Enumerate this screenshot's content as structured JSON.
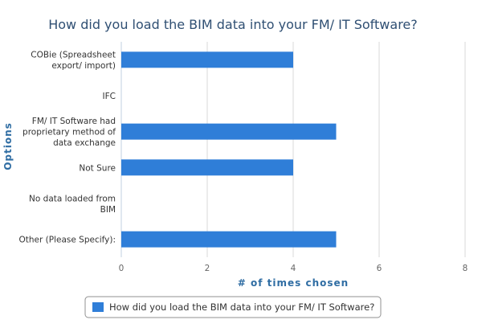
{
  "chart_data": {
    "type": "bar",
    "orientation": "horizontal",
    "title": "How did you load the BIM data into your FM/ IT Software?",
    "xlabel": "# of times chosen",
    "ylabel": "Options",
    "categories": [
      [
        "COBie (Spreadsheet",
        "export/ import)"
      ],
      [
        "IFC"
      ],
      [
        "FM/ IT Software had",
        "proprietary method of",
        "data exchange"
      ],
      [
        "Not Sure"
      ],
      [
        "No data loaded from",
        "BIM"
      ],
      [
        "Other (Please Specify):"
      ]
    ],
    "series": [
      {
        "name": "How did you load the BIM data into your FM/ IT Software?",
        "values": [
          4,
          0,
          5,
          4,
          0,
          5
        ],
        "color": "#2f7ed8"
      }
    ],
    "xlim": [
      0,
      8
    ],
    "xticks": [
      0,
      2,
      4,
      6,
      8
    ],
    "grid": true,
    "legend_position": "bottom"
  }
}
